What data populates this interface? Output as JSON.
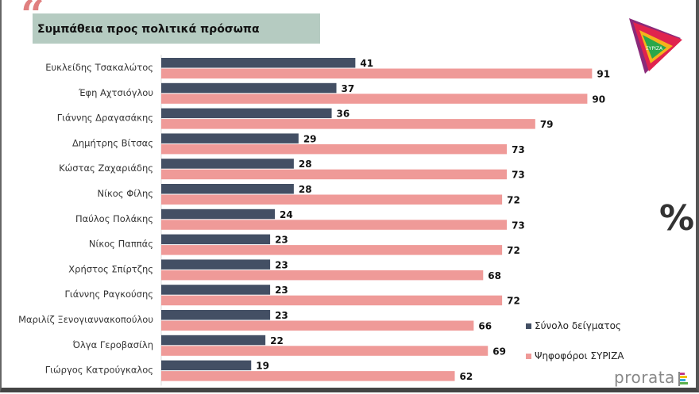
{
  "header": {
    "title": "Συμπάθεια προς πολιτικά πρόσωπα",
    "unit_symbol": "%",
    "brand": "prorata"
  },
  "colors": {
    "sample": "#434f64",
    "syriza": "#ef9a98",
    "title_bg": "#b5cbc1"
  },
  "chart_data": {
    "type": "bar",
    "orientation": "horizontal",
    "title": "Συμπάθεια προς πολιτικά πρόσωπα",
    "categories": [
      "Ευκλείδης Τσακαλώτος",
      "Έφη Αχτσιόγλου",
      "Γιάννης Δραγασάκης",
      "Δημήτρης Βίτσας",
      "Κώστας Ζαχαριάδης",
      "Νίκος Φίλης",
      "Παύλος Πολάκης",
      "Νίκος Παππάς",
      "Χρήστος Σπίρτζης",
      "Γιάννης Ραγκούσης",
      "Μαριλίζ Ξενογιαννακοπούλου",
      "Όλγα Γεροβασίλη",
      "Γιώργος Κατρούγκαλος"
    ],
    "series": [
      {
        "name": "Σύνολο δείγματος",
        "color": "#434f64",
        "values": [
          41,
          37,
          36,
          29,
          28,
          28,
          24,
          23,
          23,
          23,
          23,
          22,
          19
        ]
      },
      {
        "name": "Ψηφοφόροι ΣΥΡΙΖΑ",
        "color": "#ef9a98",
        "values": [
          91,
          90,
          79,
          73,
          73,
          72,
          73,
          72,
          68,
          72,
          66,
          69,
          62
        ]
      }
    ],
    "xlim": [
      0,
      100
    ],
    "grid": false,
    "legend": "bottom-right",
    "data_labels": true
  }
}
